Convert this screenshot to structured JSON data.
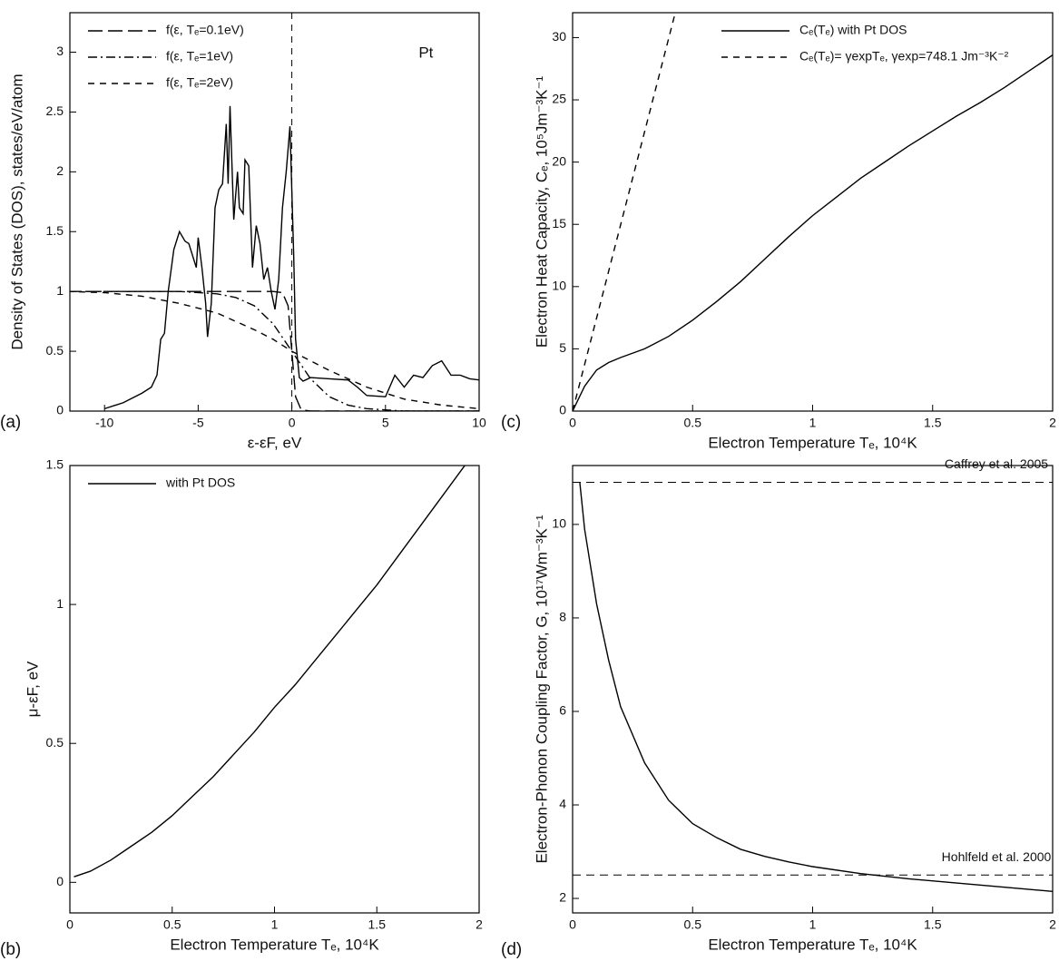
{
  "chart_data": [
    {
      "type": "line",
      "panel_label": "(a)",
      "xlabel": "ε-εF, eV",
      "ylabel": "Density of States (DOS), states/eV/atom",
      "annotation": "Pt",
      "legend": "upper left",
      "vline": 0,
      "xlim": [
        -11.85,
        10
      ],
      "xticks": [
        -10,
        -5,
        0,
        5,
        10
      ],
      "ylim": [
        0,
        3.33
      ],
      "yticks": [
        0,
        0.5,
        1,
        1.5,
        2,
        2.5,
        3
      ],
      "series": [
        {
          "name": "f(ε, Tₑ=0.1eV)",
          "color": "#000000",
          "style": "long-dash",
          "x": [
            -12,
            -1,
            -0.5,
            -0.2,
            0,
            0.2,
            0.5,
            1,
            10
          ],
          "values": [
            1,
            1,
            0.99,
            0.88,
            0.5,
            0.12,
            0.01,
            0,
            0
          ]
        },
        {
          "name": "f(ε, Tₑ=1eV)",
          "color": "#000000",
          "style": "dash-dot",
          "x": [
            -12,
            -6,
            -4,
            -3,
            -2,
            -1,
            0,
            1,
            2,
            3,
            4,
            5,
            6,
            10
          ],
          "values": [
            1,
            1,
            0.98,
            0.95,
            0.88,
            0.73,
            0.5,
            0.27,
            0.12,
            0.05,
            0.02,
            0.01,
            0,
            0
          ]
        },
        {
          "name": "f(ε, Tₑ=2eV)",
          "color": "#000000",
          "style": "dash",
          "x": [
            -12,
            -10,
            -8,
            -6,
            -4,
            -2,
            -1,
            0,
            1,
            2,
            3,
            4,
            5,
            6,
            8,
            10
          ],
          "values": [
            1,
            0.99,
            0.96,
            0.9,
            0.82,
            0.68,
            0.6,
            0.5,
            0.42,
            0.34,
            0.27,
            0.2,
            0.15,
            0.1,
            0.05,
            0.02
          ]
        },
        {
          "color": "#000000",
          "style": "solid",
          "x": [
            -10,
            -9,
            -8,
            -7.5,
            -7.2,
            -7,
            -6.8,
            -6.6,
            -6.3,
            -6,
            -5.7,
            -5.5,
            -5.3,
            -5.1,
            -5,
            -4.8,
            -4.6,
            -4.5,
            -4.3,
            -4.1,
            -3.9,
            -3.7,
            -3.5,
            -3.4,
            -3.3,
            -3.1,
            -2.9,
            -2.8,
            -2.6,
            -2.5,
            -2.3,
            -2.1,
            -1.9,
            -1.7,
            -1.5,
            -1.3,
            -1.1,
            -0.9,
            -0.7,
            -0.5,
            -0.3,
            -0.1,
            0.1,
            0.2,
            0.4,
            0.6,
            1,
            2,
            3,
            3.5,
            4,
            5,
            5.5,
            6,
            6.5,
            7,
            7.5,
            8,
            8.5,
            9,
            9.5,
            10
          ],
          "values": [
            0.02,
            0.07,
            0.15,
            0.2,
            0.3,
            0.6,
            0.65,
            1.0,
            1.35,
            1.5,
            1.42,
            1.4,
            1.3,
            1.2,
            1.45,
            1.2,
            0.9,
            0.62,
            0.9,
            1.7,
            1.85,
            1.9,
            2.4,
            1.9,
            2.55,
            1.6,
            2.0,
            1.7,
            1.65,
            2.1,
            2.05,
            1.2,
            1.55,
            1.4,
            1.1,
            1.2,
            1.0,
            0.85,
            1.1,
            1.7,
            2.0,
            2.38,
            1.3,
            0.6,
            0.28,
            0.25,
            0.28,
            0.27,
            0.26,
            0.2,
            0.13,
            0.12,
            0.3,
            0.2,
            0.3,
            0.28,
            0.38,
            0.42,
            0.3,
            0.3,
            0.27,
            0.26
          ]
        }
      ]
    },
    {
      "type": "line",
      "panel_label": "(b)",
      "xlabel": "Electron Temperature Tₑ, 10⁴K",
      "ylabel": "μ-εF, eV",
      "legend": "upper left",
      "xlim": [
        0,
        2
      ],
      "xticks": [
        0,
        0.5,
        1,
        1.5,
        2
      ],
      "ylim": [
        -0.11,
        1.5
      ],
      "yticks": [
        0,
        0.5,
        1,
        1.5
      ],
      "series": [
        {
          "name": "with Pt DOS",
          "color": "#000000",
          "style": "solid",
          "x": [
            0.02,
            0.1,
            0.2,
            0.3,
            0.4,
            0.5,
            0.6,
            0.7,
            0.8,
            0.9,
            1.0,
            1.1,
            1.2,
            1.3,
            1.4,
            1.5,
            1.6,
            1.7,
            1.8,
            1.93
          ],
          "values": [
            0.02,
            0.04,
            0.08,
            0.13,
            0.18,
            0.24,
            0.31,
            0.38,
            0.46,
            0.54,
            0.63,
            0.71,
            0.8,
            0.89,
            0.98,
            1.07,
            1.17,
            1.27,
            1.37,
            1.5
          ]
        }
      ]
    },
    {
      "type": "line",
      "panel_label": "(c)",
      "xlabel": "Electron Temperature Tₑ, 10⁴K",
      "ylabel": "Electron Heat Capacity, Cₑ, 10⁵Jm⁻³K⁻¹",
      "legend": "upper right",
      "xlim": [
        0,
        2
      ],
      "xticks": [
        0,
        0.5,
        1,
        1.5,
        2
      ],
      "ylim": [
        0,
        32
      ],
      "yticks": [
        0,
        5,
        10,
        15,
        20,
        25,
        30
      ],
      "series": [
        {
          "name": "Cₑ(Tₑ) with Pt DOS",
          "color": "#000000",
          "style": "solid",
          "x": [
            0,
            0.02,
            0.05,
            0.1,
            0.15,
            0.2,
            0.3,
            0.4,
            0.5,
            0.6,
            0.7,
            0.8,
            0.9,
            1.0,
            1.1,
            1.2,
            1.3,
            1.4,
            1.5,
            1.6,
            1.7,
            1.8,
            1.9,
            2.0
          ],
          "values": [
            0,
            0.8,
            2,
            3.3,
            3.9,
            4.3,
            5.0,
            6.0,
            7.3,
            8.8,
            10.4,
            12.2,
            14.0,
            15.7,
            17.2,
            18.7,
            20.0,
            21.3,
            22.5,
            23.7,
            24.8,
            26.0,
            27.3,
            28.6
          ]
        },
        {
          "name": "Cₑ(Tₑ)= γexpTₑ, γexp=748.1 Jm⁻³K⁻²",
          "color": "#000000",
          "style": "dash",
          "x": [
            0,
            0.45
          ],
          "values": [
            0,
            33.66
          ]
        }
      ]
    },
    {
      "type": "line",
      "panel_label": "(d)",
      "xlabel": "Electron Temperature Tₑ, 10⁴K",
      "ylabel": "Electron-Phonon Coupling Factor, G, 10¹⁷Wm⁻³K⁻¹",
      "xlim": [
        0,
        2
      ],
      "xticks": [
        0,
        0.5,
        1,
        1.5,
        2
      ],
      "ylim": [
        1.69,
        11.26
      ],
      "yticks": [
        2,
        4,
        6,
        8,
        10
      ],
      "hlines": [
        {
          "value": 10.9,
          "label": "Caffrey et al. 2005"
        },
        {
          "value": 2.5,
          "label": "Hohlfeld et al. 2000"
        }
      ],
      "series": [
        {
          "color": "#000000",
          "style": "solid",
          "x": [
            0.03,
            0.05,
            0.1,
            0.15,
            0.2,
            0.3,
            0.4,
            0.5,
            0.6,
            0.7,
            0.8,
            0.9,
            1.0,
            1.2,
            1.4,
            1.6,
            1.8,
            2.0
          ],
          "values": [
            10.9,
            9.9,
            8.3,
            7.1,
            6.1,
            4.9,
            4.1,
            3.6,
            3.3,
            3.05,
            2.9,
            2.78,
            2.68,
            2.53,
            2.42,
            2.33,
            2.24,
            2.15
          ]
        }
      ]
    }
  ]
}
